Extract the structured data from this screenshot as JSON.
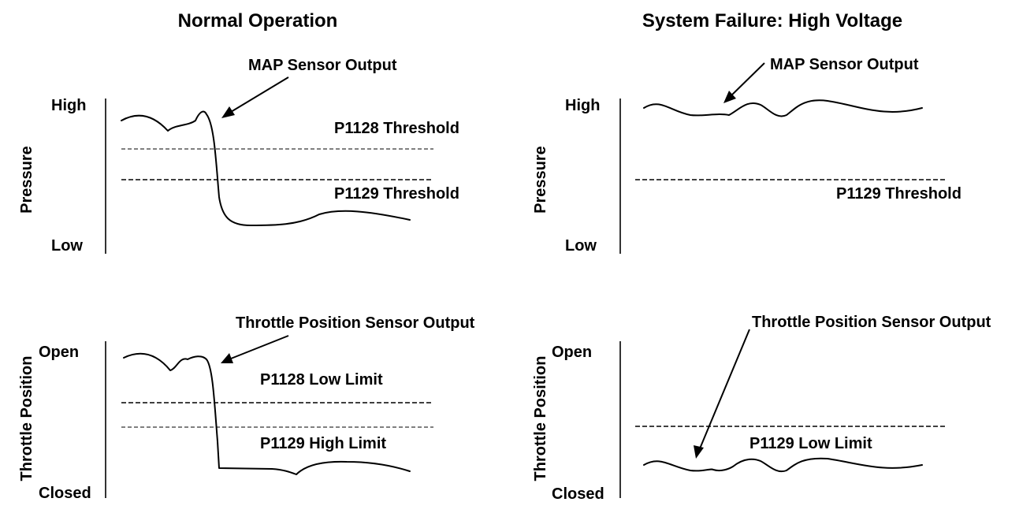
{
  "titles": {
    "normal": "Normal Operation",
    "failure": "System Failure: High Voltage"
  },
  "panels": {
    "normal_pressure": {
      "ylabel": "Pressure",
      "high": "High",
      "low": "Low",
      "signal_label": "MAP Sensor Output",
      "line_upper": "P1128 Threshold",
      "line_lower": "P1129 Threshold"
    },
    "normal_throttle": {
      "ylabel": "Throttle Position",
      "high": "Open",
      "low": "Closed",
      "signal_label": "Throttle Position Sensor Output",
      "line_upper": "P1128 Low Limit",
      "line_lower": "P1129 High Limit"
    },
    "failure_pressure": {
      "ylabel": "Pressure",
      "high": "High",
      "low": "Low",
      "signal_label": "MAP Sensor Output",
      "line": "P1129 Threshold"
    },
    "failure_throttle": {
      "ylabel": "Throttle Position",
      "high": "Open",
      "low": "Closed",
      "signal_label": "Throttle Position Sensor Output",
      "line": "P1129 Low Limit"
    }
  }
}
